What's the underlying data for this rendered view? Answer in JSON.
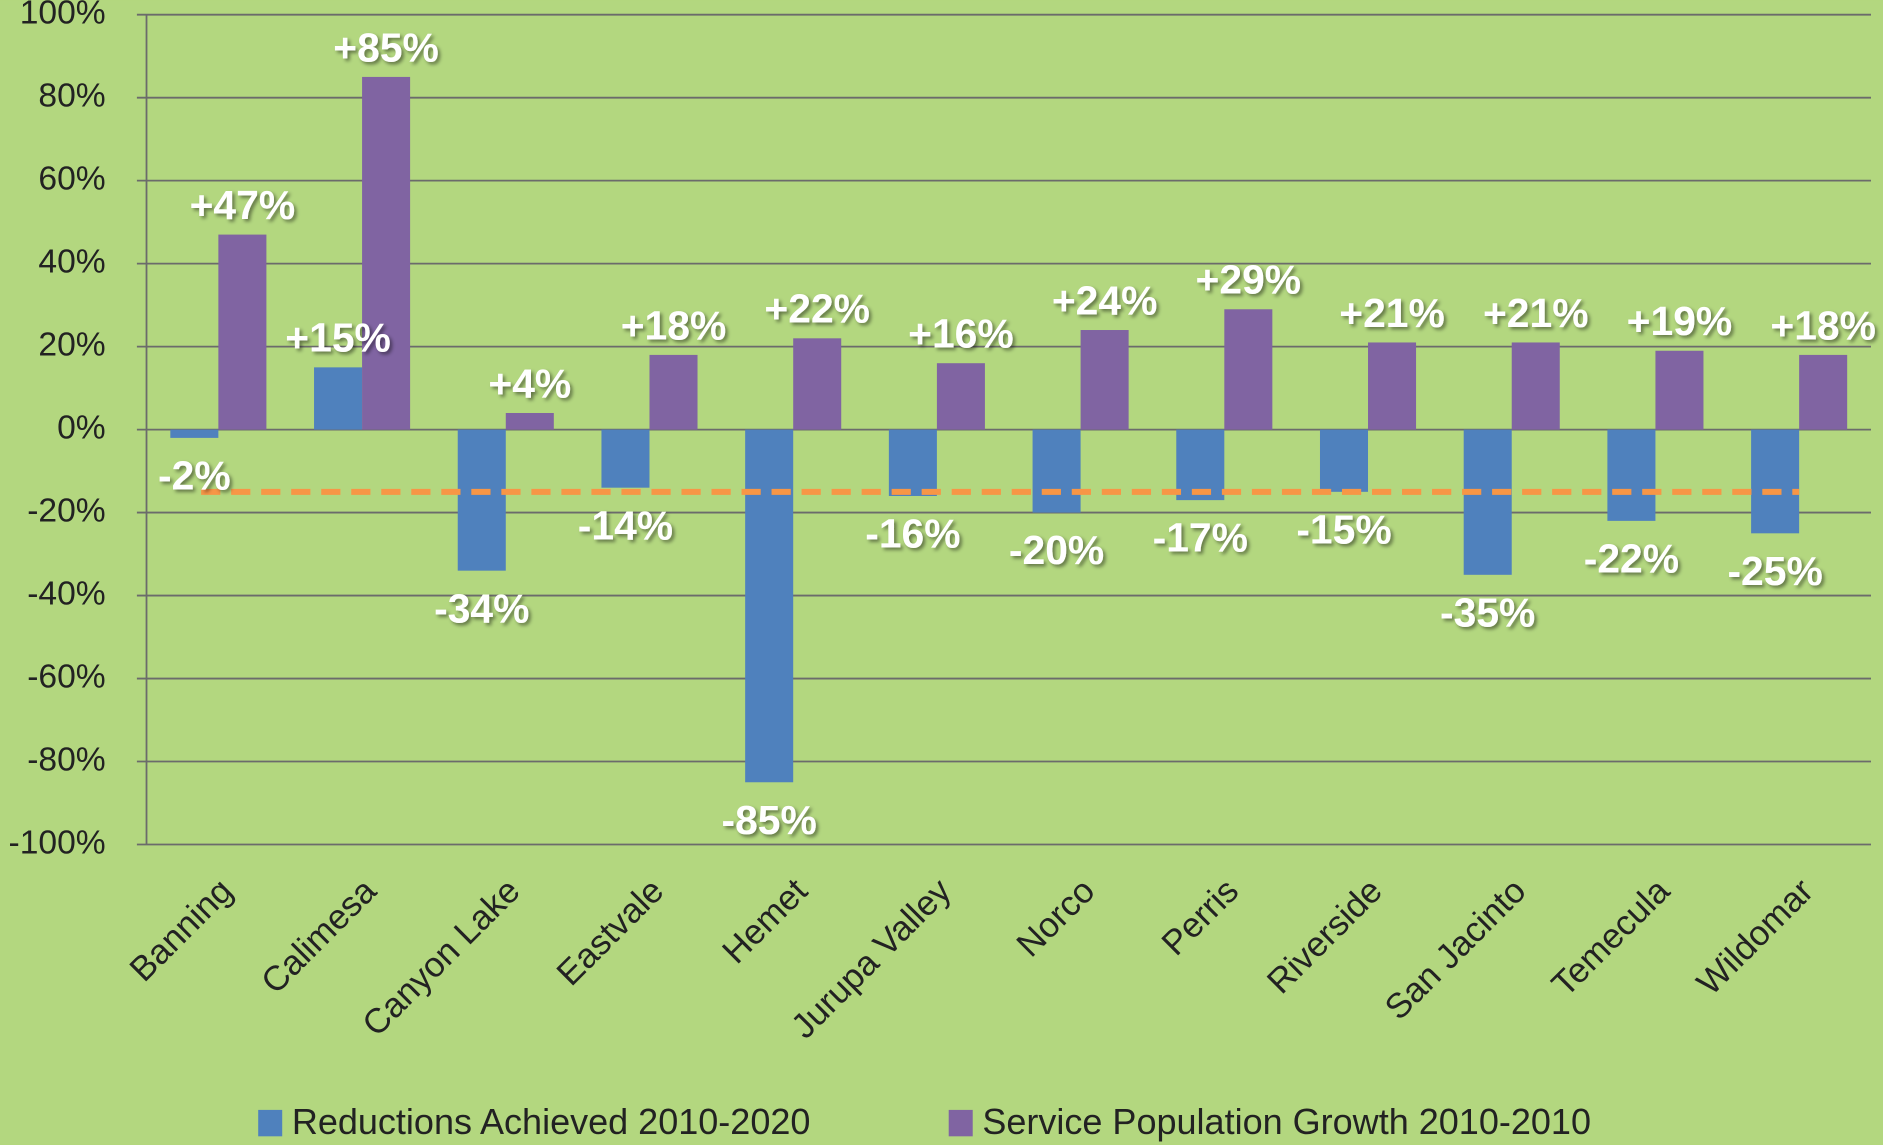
{
  "chart_data": {
    "type": "bar",
    "categories": [
      "Banning",
      "Calimesa",
      "Canyon Lake",
      "Eastvale",
      "Hemet",
      "Jurupa Valley",
      "Norco",
      "Perris",
      "Riverside",
      "San Jacinto",
      "Temecula",
      "Wildomar"
    ],
    "series": [
      {
        "name": "Reductions Achieved 2010-2020",
        "color": "#4f81bd",
        "values": [
          -2,
          15,
          -34,
          -14,
          -85,
          -16,
          -20,
          -17,
          -15,
          -35,
          -22,
          -25
        ],
        "value_labels": [
          "-2%",
          "+15%",
          "-34%",
          "-14%",
          "-85%",
          "-16%",
          "-20%",
          "-17%",
          "-15%",
          "-35%",
          "-22%",
          "-25%"
        ]
      },
      {
        "name": "Service Population Growth 2010-2010",
        "color": "#8064a2",
        "values": [
          47,
          85,
          4,
          18,
          22,
          16,
          24,
          29,
          21,
          21,
          19,
          18
        ],
        "value_labels": [
          "+47%",
          "+85%",
          "+4%",
          "+18%",
          "+22%",
          "+16%",
          "+24%",
          "+29%",
          "+21%",
          "+21%",
          "+19%",
          "+18%"
        ]
      }
    ],
    "ylim": [
      -100,
      100
    ],
    "yticks": [
      {
        "value": -100,
        "label": "-100%"
      },
      {
        "value": -80,
        "label": "-80%"
      },
      {
        "value": -60,
        "label": "-60%"
      },
      {
        "value": -40,
        "label": "-40%"
      },
      {
        "value": -20,
        "label": "-20%"
      },
      {
        "value": 0,
        "label": "0%"
      },
      {
        "value": 20,
        "label": "20%"
      },
      {
        "value": 40,
        "label": "40%"
      },
      {
        "value": 60,
        "label": "60%"
      },
      {
        "value": 80,
        "label": "80%"
      },
      {
        "value": 100,
        "label": "100%"
      }
    ],
    "grid": true,
    "reference_line": {
      "value": -15,
      "color": "#f79646"
    },
    "legend": "bottom"
  }
}
